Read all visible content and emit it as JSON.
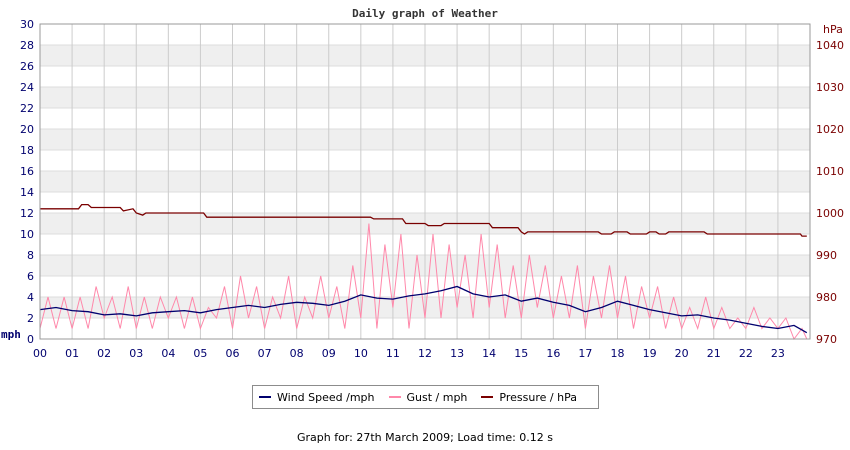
{
  "chart_data": {
    "type": "line",
    "title": "Daily graph of Weather",
    "ylabel": "mph",
    "y2label": "hPa",
    "ylim": [
      0,
      30
    ],
    "yticks": [
      0,
      2,
      4,
      6,
      8,
      10,
      12,
      14,
      16,
      18,
      20,
      22,
      24,
      26,
      28,
      30
    ],
    "y2lim": [
      970,
      1045
    ],
    "y2ticks": [
      970,
      980,
      990,
      1000,
      1010,
      1020,
      1030,
      1040
    ],
    "xlim": [
      0,
      24
    ],
    "xtick_labels": [
      "00",
      "01",
      "02",
      "03",
      "04",
      "05",
      "06",
      "07",
      "08",
      "09",
      "10",
      "11",
      "12",
      "13",
      "14",
      "15",
      "16",
      "17",
      "18",
      "19",
      "20",
      "21",
      "22",
      "23"
    ],
    "grid": true,
    "legend_position": "bottom",
    "colors": {
      "wind": "#00006e",
      "gust": "#ff88aa",
      "pressure": "#7a0000"
    },
    "series": [
      {
        "name": "Wind Speed /mph",
        "axis": "left",
        "x": [
          0,
          0.5,
          1,
          1.5,
          2,
          2.5,
          3,
          3.5,
          4,
          4.5,
          5,
          5.5,
          6,
          6.5,
          7,
          7.5,
          8,
          8.5,
          9,
          9.5,
          10,
          10.5,
          11,
          11.5,
          12,
          12.5,
          13,
          13.5,
          14,
          14.5,
          15,
          15.5,
          16,
          16.5,
          17,
          17.5,
          18,
          18.5,
          19,
          19.5,
          20,
          20.5,
          21,
          21.5,
          22,
          22.5,
          23,
          23.5,
          23.9
        ],
        "values": [
          2.8,
          3.0,
          2.7,
          2.6,
          2.3,
          2.4,
          2.2,
          2.5,
          2.6,
          2.7,
          2.5,
          2.8,
          3.0,
          3.2,
          3.0,
          3.3,
          3.5,
          3.4,
          3.2,
          3.6,
          4.2,
          3.9,
          3.8,
          4.1,
          4.3,
          4.6,
          5.0,
          4.3,
          4.0,
          4.2,
          3.6,
          3.9,
          3.5,
          3.2,
          2.6,
          3.0,
          3.6,
          3.2,
          2.8,
          2.5,
          2.2,
          2.3,
          2.0,
          1.8,
          1.5,
          1.2,
          1.0,
          1.3,
          0.6
        ]
      },
      {
        "name": "Gust / mph",
        "axis": "left",
        "x": [
          0,
          0.25,
          0.5,
          0.75,
          1,
          1.25,
          1.5,
          1.75,
          2,
          2.25,
          2.5,
          2.75,
          3,
          3.25,
          3.5,
          3.75,
          4,
          4.25,
          4.5,
          4.75,
          5,
          5.25,
          5.5,
          5.75,
          6,
          6.25,
          6.5,
          6.75,
          7,
          7.25,
          7.5,
          7.75,
          8,
          8.25,
          8.5,
          8.75,
          9,
          9.25,
          9.5,
          9.75,
          10,
          10.25,
          10.5,
          10.75,
          11,
          11.25,
          11.5,
          11.75,
          12,
          12.25,
          12.5,
          12.75,
          13,
          13.25,
          13.5,
          13.75,
          14,
          14.25,
          14.5,
          14.75,
          15,
          15.25,
          15.5,
          15.75,
          16,
          16.25,
          16.5,
          16.75,
          17,
          17.25,
          17.5,
          17.75,
          18,
          18.25,
          18.5,
          18.75,
          19,
          19.25,
          19.5,
          19.75,
          20,
          20.25,
          20.5,
          20.75,
          21,
          21.25,
          21.5,
          21.75,
          22,
          22.25,
          22.5,
          22.75,
          23,
          23.25,
          23.5,
          23.75,
          23.9
        ],
        "values": [
          1,
          4,
          1,
          4,
          1,
          4,
          1,
          5,
          2,
          4,
          1,
          5,
          1,
          4,
          1,
          4,
          2,
          4,
          1,
          4,
          1,
          3,
          2,
          5,
          1,
          6,
          2,
          5,
          1,
          4,
          2,
          6,
          1,
          4,
          2,
          6,
          2,
          5,
          1,
          7,
          2,
          11,
          1,
          9,
          3,
          10,
          1,
          8,
          2,
          10,
          2,
          9,
          3,
          8,
          2,
          10,
          3,
          9,
          2,
          7,
          2,
          8,
          3,
          7,
          2,
          6,
          2,
          7,
          1,
          6,
          2,
          7,
          2,
          6,
          1,
          5,
          2,
          5,
          1,
          4,
          1,
          3,
          1,
          4,
          1,
          3,
          1,
          2,
          1,
          3,
          1,
          2,
          1,
          2,
          0,
          1,
          0
        ]
      },
      {
        "name": "Pressure / hPa",
        "axis": "right",
        "x": [
          0,
          1.2,
          1.3,
          1.5,
          1.6,
          2.5,
          2.6,
          2.9,
          3.0,
          3.2,
          3.3,
          5.1,
          5.2,
          10.3,
          10.4,
          11.3,
          11.4,
          12.0,
          12.1,
          12.5,
          12.6,
          13.0,
          13.1,
          14.0,
          14.1,
          14.9,
          15.0,
          15.1,
          15.2,
          17.4,
          17.5,
          17.8,
          17.9,
          18.3,
          18.4,
          18.9,
          19.0,
          19.2,
          19.3,
          19.5,
          19.6,
          20.7,
          20.8,
          21.0,
          21.1,
          23.7,
          23.75,
          23.9
        ],
        "values": [
          1001,
          1001,
          1002,
          1002,
          1001.3,
          1001.3,
          1000.5,
          1001,
          1000,
          999.5,
          1000,
          1000,
          999,
          999,
          998.6,
          998.6,
          997.5,
          997.5,
          997,
          997,
          997.5,
          997.5,
          997.5,
          997.5,
          996.5,
          996.5,
          995.5,
          995,
          995.5,
          995.5,
          995,
          995,
          995.5,
          995.5,
          995,
          995,
          995.5,
          995.5,
          995,
          995,
          995.5,
          995.5,
          995,
          995,
          995,
          995,
          994.5,
          994.5
        ]
      }
    ]
  },
  "footer": "Graph for: 27th March 2009; Load time: 0.12 s"
}
